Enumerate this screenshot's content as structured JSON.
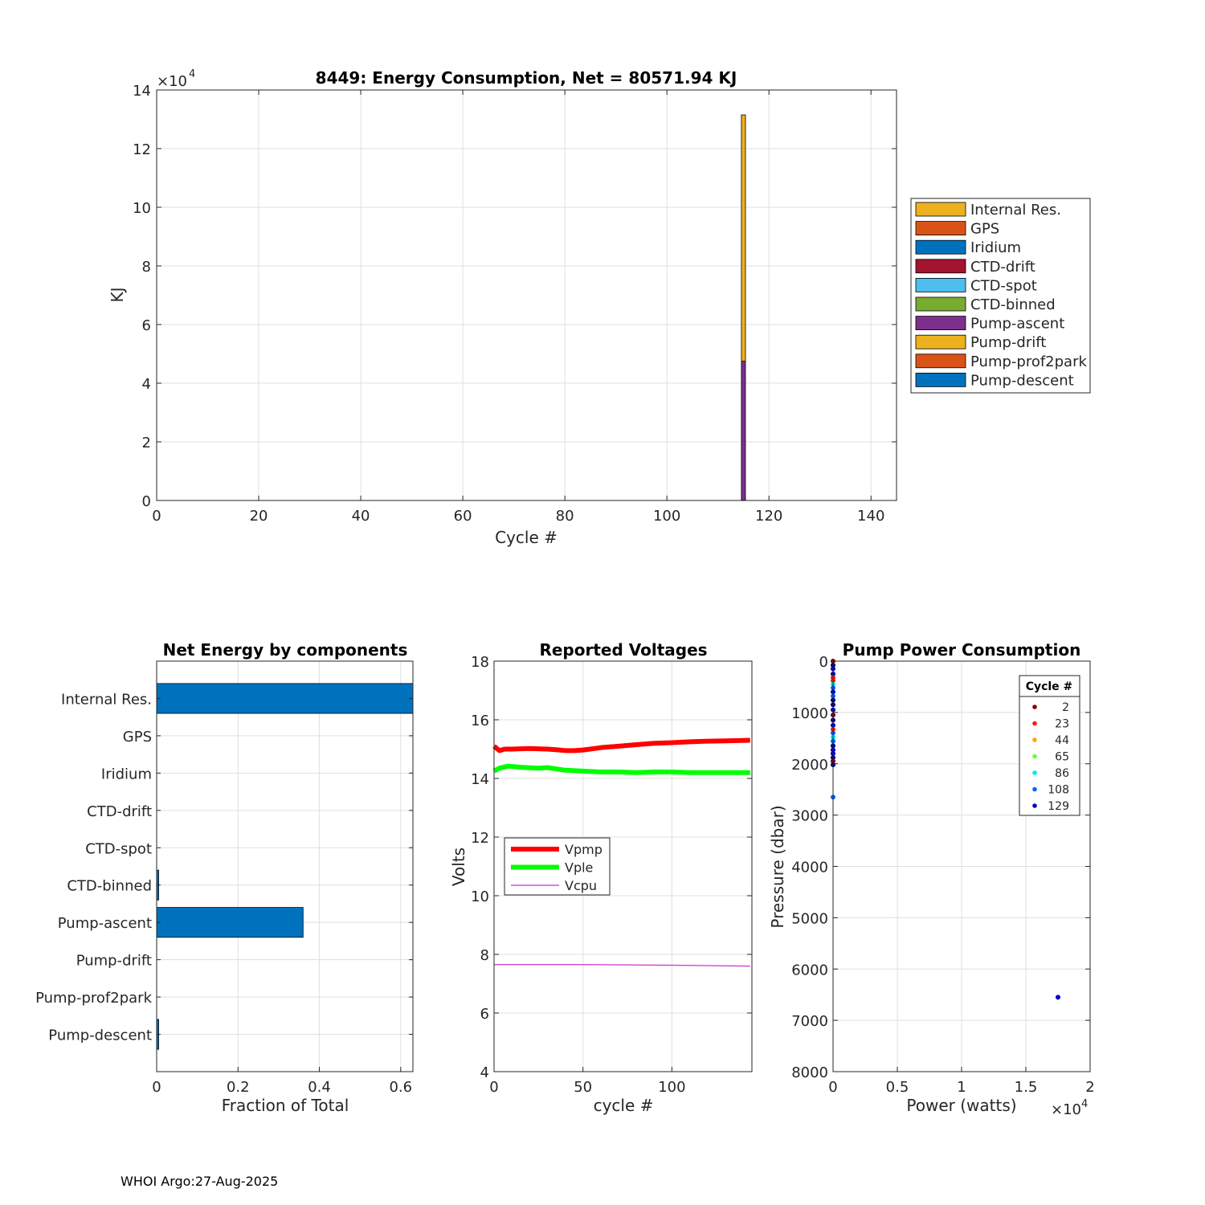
{
  "footer": "WHOI Argo:27-Aug-2025",
  "colors": {
    "internal": "#EDB120",
    "gps": "#D95319",
    "iridium": "#0072BD",
    "ctd_drift": "#A2142F",
    "ctd_spot": "#4DBEEE",
    "ctd_binned": "#77AC30",
    "pump_ascent": "#7E2F8E",
    "pump_drift": "#EDB120",
    "pump_prof2park": "#D95319",
    "pump_descent": "#0072BD",
    "bar_h": "#0072BD",
    "vpmp": "#FF0000",
    "vple": "#00FF00",
    "vcpu": "#CC33CC"
  },
  "chart_data": [
    {
      "id": "energy",
      "type": "bar",
      "stacked": true,
      "title": "8449: Energy Consumption,  Net = 80571.94 KJ",
      "xlabel": "Cycle #",
      "ylabel": "KJ",
      "xlim": [
        0,
        145
      ],
      "ylim": [
        0,
        140000
      ],
      "y_exponent": "×10",
      "y_exponent_power": "4",
      "xticks": [
        0,
        20,
        40,
        60,
        80,
        100,
        120,
        140
      ],
      "yticks": [
        0,
        2,
        4,
        6,
        8,
        10,
        12,
        14
      ],
      "grid": true,
      "legend_position": "outside-right",
      "legend": [
        "Internal Res.",
        "GPS",
        "Iridium",
        "CTD-drift",
        "CTD-spot",
        "CTD-binned",
        "Pump-ascent",
        "Pump-drift",
        "Pump-prof2park",
        "Pump-descent"
      ],
      "legend_colors": [
        "internal",
        "gps",
        "iridium",
        "ctd_drift",
        "ctd_spot",
        "ctd_binned",
        "pump_ascent",
        "pump_drift",
        "pump_prof2park",
        "pump_descent"
      ],
      "bars": [
        {
          "x": 115,
          "segments": [
            {
              "component": "Pump-ascent",
              "color": "pump_ascent",
              "value": 47500
            },
            {
              "component": "Internal Res.",
              "color": "internal",
              "value": 84000
            }
          ]
        }
      ]
    },
    {
      "id": "components",
      "type": "bar",
      "orientation": "horizontal",
      "title": "Net Energy by components",
      "xlabel": "Fraction of Total",
      "xlim": [
        0,
        0.63
      ],
      "xticks": [
        "0",
        "0.2",
        "0.4",
        "0.6"
      ],
      "xtick_values": [
        0,
        0.2,
        0.4,
        0.6
      ],
      "grid": true,
      "categories": [
        "Internal Res.",
        "GPS",
        "Iridium",
        "CTD-drift",
        "CTD-spot",
        "CTD-binned",
        "Pump-ascent",
        "Pump-drift",
        "Pump-prof2park",
        "Pump-descent"
      ],
      "values": [
        0.63,
        0.0,
        0.0,
        0.0,
        0.0,
        0.005,
        0.36,
        0.0,
        0.0,
        0.005
      ]
    },
    {
      "id": "voltages",
      "type": "line",
      "title": "Reported Voltages",
      "xlabel": "cycle #",
      "ylabel": "Volts",
      "xlim": [
        0,
        145
      ],
      "ylim": [
        4,
        18
      ],
      "xticks": [
        0,
        50,
        100
      ],
      "yticks": [
        4,
        6,
        8,
        10,
        12,
        14,
        16,
        18
      ],
      "grid": true,
      "legend_position": "middle-left",
      "series": [
        {
          "name": "Vpmp",
          "color": "vpmp",
          "width": "thick",
          "x": [
            0,
            3,
            6,
            10,
            20,
            30,
            35,
            40,
            45,
            50,
            54,
            60,
            70,
            80,
            90,
            100,
            110,
            120,
            130,
            144
          ],
          "y": [
            15.1,
            14.95,
            15.0,
            15.0,
            15.02,
            15.0,
            14.98,
            14.95,
            14.95,
            14.97,
            15.0,
            15.05,
            15.1,
            15.15,
            15.2,
            15.22,
            15.25,
            15.27,
            15.28,
            15.3
          ]
        },
        {
          "name": "Vple",
          "color": "vple",
          "width": "thick",
          "x": [
            0,
            3,
            8,
            15,
            25,
            30,
            40,
            50,
            60,
            70,
            80,
            90,
            100,
            110,
            120,
            130,
            144
          ],
          "y": [
            14.25,
            14.35,
            14.42,
            14.38,
            14.35,
            14.37,
            14.28,
            14.25,
            14.22,
            14.22,
            14.2,
            14.22,
            14.22,
            14.2,
            14.2,
            14.2,
            14.2
          ]
        },
        {
          "name": "Vcpu",
          "color": "vcpu",
          "width": "thin",
          "x": [
            0,
            50,
            100,
            144
          ],
          "y": [
            7.65,
            7.65,
            7.63,
            7.6
          ]
        }
      ]
    },
    {
      "id": "pump",
      "type": "scatter",
      "title": "Pump Power Consumption",
      "xlabel": "Power (watts)",
      "ylabel": "Pressure (dbar)",
      "xlim": [
        0,
        20000
      ],
      "ylim": [
        0,
        8000
      ],
      "y_reversed": true,
      "x_exponent": "×10",
      "x_exponent_power": "4",
      "xticks": [
        "0",
        "0.5",
        "1",
        "1.5",
        "2"
      ],
      "xtick_values": [
        0,
        5000,
        10000,
        15000,
        20000
      ],
      "yticks": [
        0,
        1000,
        2000,
        3000,
        4000,
        5000,
        6000,
        7000,
        8000
      ],
      "grid": true,
      "legend_title": "Cycle #",
      "legend_position": "top-right",
      "legend": [
        {
          "label": "2",
          "color": "#800000"
        },
        {
          "label": "23",
          "color": "#FF1A00"
        },
        {
          "label": "44",
          "color": "#FFA500"
        },
        {
          "label": "65",
          "color": "#66FF33"
        },
        {
          "label": "86",
          "color": "#00E6E6"
        },
        {
          "label": "108",
          "color": "#0066FF"
        },
        {
          "label": "129",
          "color": "#0000CC"
        }
      ],
      "points": [
        {
          "x": 0,
          "y": 0,
          "c": "#800000"
        },
        {
          "x": 0,
          "y": 80,
          "c": "#000080"
        },
        {
          "x": 0,
          "y": 150,
          "c": "#0000CC"
        },
        {
          "x": 0,
          "y": 250,
          "c": "#0000CC"
        },
        {
          "x": 0,
          "y": 320,
          "c": "#FF1A00"
        },
        {
          "x": 0,
          "y": 380,
          "c": "#FF1A00"
        },
        {
          "x": 0,
          "y": 450,
          "c": "#00E6E6"
        },
        {
          "x": 0,
          "y": 520,
          "c": "#0066FF"
        },
        {
          "x": 0,
          "y": 600,
          "c": "#0000CC"
        },
        {
          "x": 0,
          "y": 680,
          "c": "#0066FF"
        },
        {
          "x": 0,
          "y": 760,
          "c": "#000080"
        },
        {
          "x": 0,
          "y": 850,
          "c": "#000080"
        },
        {
          "x": 0,
          "y": 950,
          "c": "#0000CC"
        },
        {
          "x": 0,
          "y": 1050,
          "c": "#800000"
        },
        {
          "x": 0,
          "y": 1150,
          "c": "#000080"
        },
        {
          "x": 0,
          "y": 1250,
          "c": "#0000CC"
        },
        {
          "x": 0,
          "y": 1330,
          "c": "#FF1A00"
        },
        {
          "x": 0,
          "y": 1400,
          "c": "#0066FF"
        },
        {
          "x": 0,
          "y": 1480,
          "c": "#00E6E6"
        },
        {
          "x": 0,
          "y": 1560,
          "c": "#0066FF"
        },
        {
          "x": 0,
          "y": 1650,
          "c": "#000080"
        },
        {
          "x": 0,
          "y": 1730,
          "c": "#0000CC"
        },
        {
          "x": 0,
          "y": 1800,
          "c": "#0000CC"
        },
        {
          "x": 0,
          "y": 1880,
          "c": "#000080"
        },
        {
          "x": 0,
          "y": 1950,
          "c": "#800000"
        },
        {
          "x": 0,
          "y": 2020,
          "c": "#000080"
        },
        {
          "x": 0,
          "y": 2650,
          "c": "#0066FF"
        },
        {
          "x": 17500,
          "y": 6550,
          "c": "#0000CC"
        }
      ]
    }
  ]
}
